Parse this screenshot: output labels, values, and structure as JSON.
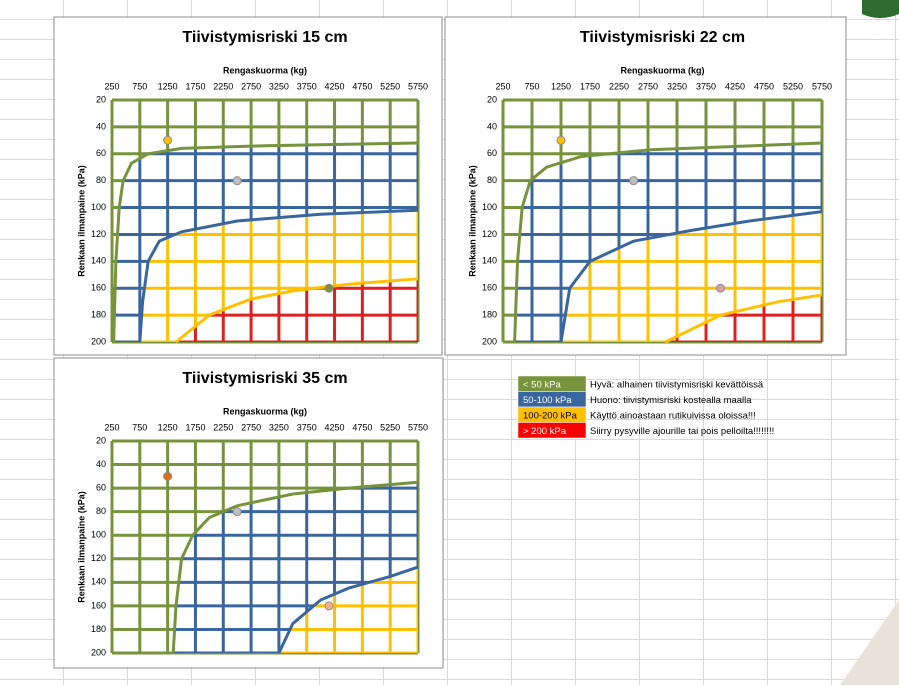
{
  "chart_data": [
    {
      "type": "zone",
      "title": "Tiivistymisriski 15 cm",
      "x_label": "Rengaskuorma (kg)",
      "y_label": "Renkaan ilmanpaine (kPa)",
      "x_axis_position": "top",
      "y_reversed": true,
      "color": "#77933c",
      "xlim": [
        250,
        5750
      ],
      "xticks": [
        250,
        750,
        1250,
        1750,
        2250,
        2750,
        3250,
        3750,
        4250,
        4750,
        5250,
        5750
      ],
      "ylim": [
        20,
        200
      ],
      "yticks": [
        20,
        40,
        60,
        80,
        100,
        120,
        140,
        160,
        180,
        200
      ],
      "series": [
        {
          "color": "#3a66a0",
          "x": [
            280,
            320,
            380,
            450,
            600,
            900,
            1500,
            3000,
            5750
          ],
          "values": [
            200,
            140,
            100,
            80,
            67,
            60,
            56,
            54,
            52
          ]
        },
        {
          "color": "#ffc000",
          "x": [
            750,
            800,
            900,
            1100,
            1500,
            2500,
            4000,
            5750
          ],
          "values": [
            200,
            170,
            140,
            125,
            118,
            110,
            105,
            102
          ]
        },
        {
          "color": "#e02020",
          "x": [
            1400,
            2000,
            2750,
            3500,
            4500,
            5750
          ],
          "values": [
            200,
            180,
            168,
            162,
            157,
            153
          ]
        }
      ],
      "points": {
        "x": [
          1250,
          2500,
          4150
        ],
        "values": [
          50,
          80,
          160
        ],
        "colors": [
          "#ffc000",
          "#bfbfbf",
          "#77933c"
        ]
      }
    },
    {
      "type": "zone",
      "title": "Tiivistymisriski 22 cm",
      "x_label": "Rengaskuorma (kg)",
      "y_label": "Renkaan ilmanpaine (kPa)",
      "x_axis_position": "top",
      "y_reversed": true,
      "color": "#77933c",
      "xlim": [
        250,
        5750
      ],
      "xticks": [
        250,
        750,
        1250,
        1750,
        2250,
        2750,
        3250,
        3750,
        4250,
        4750,
        5250,
        5750
      ],
      "ylim": [
        20,
        200
      ],
      "yticks": [
        20,
        40,
        60,
        80,
        100,
        120,
        140,
        160,
        180,
        200
      ],
      "series": [
        {
          "color": "#3a66a0",
          "x": [
            450,
            500,
            580,
            720,
            1000,
            1600,
            2800,
            5750
          ],
          "values": [
            200,
            140,
            100,
            80,
            70,
            62,
            57,
            52
          ]
        },
        {
          "color": "#ffc000",
          "x": [
            1250,
            1400,
            1750,
            2500,
            3500,
            4500,
            5750
          ],
          "values": [
            200,
            160,
            140,
            125,
            117,
            110,
            103
          ]
        },
        {
          "color": "#e02020",
          "x": [
            3050,
            4000,
            5000,
            5750
          ],
          "values": [
            200,
            180,
            170,
            165
          ]
        }
      ],
      "points": {
        "x": [
          1250,
          2500,
          4000
        ],
        "values": [
          50,
          80,
          160
        ],
        "colors": [
          "#ffc000",
          "#bfbfbf",
          "#d9a0a0"
        ]
      }
    },
    {
      "type": "zone",
      "title": "Tiivistymisriski 35 cm",
      "x_label": "Rengaskuorma (kg)",
      "y_label": "Renkaan ilmanpaine (kPa)",
      "x_axis_position": "top",
      "y_reversed": true,
      "color": "#77933c",
      "xlim": [
        250,
        5750
      ],
      "xticks": [
        250,
        750,
        1250,
        1750,
        2250,
        2750,
        3250,
        3750,
        4250,
        4750,
        5250,
        5750
      ],
      "ylim": [
        20,
        200
      ],
      "yticks": [
        20,
        40,
        60,
        80,
        100,
        120,
        140,
        160,
        180,
        200
      ],
      "series": [
        {
          "color": "#3a66a0",
          "x": [
            1350,
            1400,
            1500,
            1700,
            2000,
            2500,
            3500,
            4500,
            5750
          ],
          "values": [
            200,
            160,
            120,
            100,
            85,
            75,
            65,
            60,
            55
          ]
        },
        {
          "color": "#ffc000",
          "x": [
            3250,
            3500,
            4000,
            4500,
            5250,
            5750
          ],
          "values": [
            200,
            175,
            155,
            145,
            135,
            127
          ]
        }
      ],
      "points": {
        "x": [
          1250,
          2500,
          4150
        ],
        "values": [
          50,
          80,
          160
        ],
        "colors": [
          "#e46c0a",
          "#bfbfbf",
          "#f4b183"
        ]
      }
    }
  ],
  "legend_table": {
    "rows": [
      {
        "label": "< 50 kPa",
        "color": "#77933c",
        "text": "Hyvä: alhainen tiivistymisriski kevättöissä"
      },
      {
        "label": "50-100 kPa",
        "color": "#3a66a0",
        "text": "Huono: tiivistymisriski kostealla maalla"
      },
      {
        "label": "100-200 kPa",
        "color": "#ffc000",
        "text": "Käyttö ainoastaan rutikuivissa oloissa!!!"
      },
      {
        "label": "> 200 kPa",
        "color": "#ff0000",
        "text": "Siirry pysyville ajourille tai pois pelloilta!!!!!!!!"
      }
    ]
  }
}
